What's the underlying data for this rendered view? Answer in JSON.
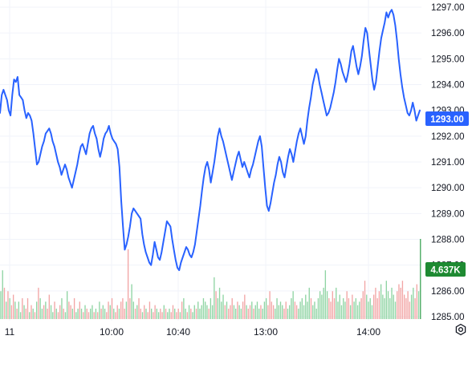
{
  "colors": {
    "price_line": "#2962ff",
    "volume_up": "#8fd4a3",
    "volume_down": "#f2a5a5",
    "volume_last": "#43a85c",
    "grid": "#f0f3fa",
    "price_tag_bg": "#2962ff",
    "volume_tag_bg": "#1e8a32"
  },
  "icons": {
    "settings": "settings-icon"
  },
  "chart_data": {
    "type": "line",
    "title": "",
    "xlabel": "",
    "ylabel": "",
    "grid": true,
    "ylim": [
      1285,
      1297.2
    ],
    "y_ticks": [
      "1297.00",
      "1296.00",
      "1295.00",
      "1294.00",
      "1293.00",
      "1292.00",
      "1291.00",
      "1290.00",
      "1289.00",
      "1288.00",
      "1287.00",
      "1286.00",
      "1285.00"
    ],
    "x_ticks": [
      "11",
      "10:00",
      "10:40",
      "13:00",
      "14:00"
    ],
    "last_price_label": "1293.00",
    "volume_label": "4.637K",
    "series": [
      {
        "kind": "price",
        "values": [
          1292.9,
          1293.6,
          1293.8,
          1293.6,
          1293.4,
          1293.0,
          1292.8,
          1293.6,
          1294.2,
          1294.1,
          1294.3,
          1293.6,
          1293.5,
          1293.4,
          1293.0,
          1292.7,
          1292.9,
          1292.8,
          1292.6,
          1292.1,
          1291.5,
          1290.9,
          1291.0,
          1291.3,
          1291.6,
          1291.8,
          1292.1,
          1292.2,
          1292.3,
          1292.1,
          1291.8,
          1291.6,
          1291.3,
          1291.0,
          1290.8,
          1290.5,
          1290.7,
          1290.9,
          1290.7,
          1290.4,
          1290.2,
          1290.0,
          1290.3,
          1290.6,
          1290.9,
          1291.3,
          1291.6,
          1291.7,
          1291.5,
          1291.3,
          1291.7,
          1292.1,
          1292.3,
          1292.4,
          1292.1,
          1291.9,
          1291.5,
          1291.2,
          1291.5,
          1291.9,
          1292.1,
          1292.2,
          1292.4,
          1292.1,
          1291.9,
          1291.8,
          1291.7,
          1291.5,
          1290.8,
          1289.5,
          1288.5,
          1287.6,
          1287.8,
          1288.1,
          1288.5,
          1289.0,
          1289.2,
          1289.1,
          1289.0,
          1288.9,
          1288.8,
          1288.2,
          1287.8,
          1287.5,
          1287.3,
          1287.1,
          1287.0,
          1287.4,
          1287.9,
          1287.6,
          1287.3,
          1287.2,
          1287.5,
          1287.9,
          1288.3,
          1288.7,
          1288.6,
          1288.5,
          1288.0,
          1287.6,
          1287.2,
          1286.9,
          1286.8,
          1287.1,
          1287.3,
          1287.5,
          1287.7,
          1287.6,
          1287.4,
          1287.3,
          1287.5,
          1287.8,
          1288.3,
          1288.8,
          1289.3,
          1289.9,
          1290.4,
          1290.8,
          1291.0,
          1290.7,
          1290.2,
          1290.6,
          1291.0,
          1291.5,
          1292.0,
          1292.3,
          1292.0,
          1291.8,
          1291.5,
          1291.2,
          1290.9,
          1290.6,
          1290.3,
          1290.6,
          1290.9,
          1291.2,
          1291.4,
          1291.1,
          1290.8,
          1291.0,
          1290.8,
          1290.6,
          1290.4,
          1290.7,
          1290.9,
          1291.2,
          1291.5,
          1291.8,
          1292.0,
          1291.6,
          1290.8,
          1290.0,
          1289.3,
          1289.1,
          1289.4,
          1289.8,
          1290.2,
          1290.5,
          1290.9,
          1291.2,
          1291.0,
          1290.6,
          1290.4,
          1290.8,
          1291.2,
          1291.5,
          1291.3,
          1291.0,
          1291.4,
          1291.8,
          1292.1,
          1292.3,
          1292.0,
          1291.7,
          1292.0,
          1292.6,
          1293.1,
          1293.5,
          1294.0,
          1294.3,
          1294.6,
          1294.4,
          1294.0,
          1293.7,
          1293.4,
          1293.1,
          1292.8,
          1292.9,
          1293.1,
          1293.4,
          1293.7,
          1294.1,
          1294.6,
          1295.0,
          1294.8,
          1294.5,
          1294.3,
          1294.1,
          1294.4,
          1294.8,
          1295.3,
          1295.5,
          1295.1,
          1294.7,
          1294.4,
          1294.7,
          1295.1,
          1295.7,
          1296.2,
          1296.0,
          1295.4,
          1294.8,
          1294.2,
          1293.8,
          1294.1,
          1294.7,
          1295.3,
          1295.8,
          1296.1,
          1296.4,
          1296.8,
          1296.6,
          1296.8,
          1296.9,
          1296.7,
          1296.3,
          1295.7,
          1295.0,
          1294.4,
          1293.9,
          1293.5,
          1293.2,
          1292.9,
          1292.8,
          1293.0,
          1293.3,
          1293.0,
          1292.6,
          1292.8,
          1293.0
        ]
      },
      {
        "kind": "volume",
        "values": [
          0.8,
          1.4,
          0.9,
          0.5,
          0.8,
          0.6,
          0.4,
          0.7,
          0.5,
          0.3,
          0.5,
          0.2,
          0.6,
          0.4,
          0.3,
          0.6,
          0.2,
          0.4,
          0.3,
          0.2,
          0.5,
          0.9,
          0.6,
          0.3,
          0.4,
          0.5,
          0.3,
          0.7,
          0.4,
          0.2,
          0.5,
          0.3,
          0.2,
          0.4,
          0.6,
          0.3,
          0.2,
          0.8,
          0.5,
          0.4,
          0.3,
          0.6,
          0.2,
          0.3,
          0.5,
          0.3,
          0.2,
          0.4,
          0.3,
          0.2,
          0.3,
          0.4,
          0.2,
          0.3,
          0.2,
          0.5,
          0.3,
          0.4,
          0.3,
          0.2,
          0.5,
          0.4,
          0.6,
          0.3,
          0.2,
          0.4,
          0.3,
          0.5,
          0.6,
          0.3,
          0.5,
          2.0,
          0.6,
          1.0,
          0.5,
          0.3,
          0.4,
          0.6,
          0.3,
          0.2,
          0.4,
          0.3,
          0.2,
          0.5,
          0.3,
          0.2,
          0.4,
          0.3,
          0.2,
          0.3,
          0.2,
          0.4,
          0.3,
          0.2,
          0.3,
          0.2,
          0.4,
          0.3,
          0.2,
          0.3,
          0.2,
          0.5,
          0.6,
          0.3,
          0.2,
          0.4,
          0.3,
          0.2,
          0.4,
          0.3,
          0.5,
          0.3,
          0.4,
          0.6,
          0.5,
          0.4,
          0.3,
          0.6,
          0.4,
          1.2,
          0.8,
          0.6,
          0.9,
          0.5,
          0.7,
          0.4,
          0.5,
          0.3,
          0.4,
          0.6,
          0.4,
          0.3,
          0.5,
          0.4,
          0.3,
          0.5,
          0.7,
          0.4,
          0.3,
          0.4,
          0.5,
          0.3,
          0.4,
          0.5,
          0.3,
          0.4,
          0.3,
          0.5,
          0.6,
          0.4,
          0.8,
          0.5,
          0.4,
          0.3,
          0.6,
          0.4,
          0.5,
          0.4,
          0.3,
          0.5,
          0.3,
          0.4,
          0.6,
          0.8,
          0.5,
          0.4,
          0.3,
          0.5,
          0.6,
          0.4,
          0.7,
          0.5,
          0.9,
          0.6,
          0.4,
          0.5,
          0.3,
          0.6,
          0.8,
          0.7,
          0.9,
          1.4,
          0.8,
          0.6,
          0.5,
          0.8,
          0.6,
          0.9,
          0.5,
          0.7,
          0.4,
          0.6,
          0.5,
          0.8,
          0.6,
          0.4,
          0.7,
          0.5,
          0.6,
          0.4,
          0.5,
          0.6,
          0.8,
          1.1,
          0.7,
          0.5,
          0.6,
          0.4,
          0.7,
          0.9,
          0.6,
          0.8,
          1.0,
          0.7,
          0.6,
          1.1,
          0.8,
          0.6,
          0.9,
          0.7,
          0.5,
          0.8,
          1.0,
          0.9,
          1.1,
          0.7,
          0.6,
          0.8,
          0.5,
          0.7,
          0.9,
          0.6,
          1.0,
          0.8,
          2.3
        ],
        "direction": [
          1,
          1,
          0,
          1,
          0,
          1,
          0,
          0,
          1,
          0,
          1,
          1,
          0,
          1,
          0,
          0,
          1,
          0,
          1,
          0,
          1,
          0,
          1,
          1,
          0,
          1,
          0,
          0,
          1,
          1,
          0,
          1,
          0,
          0,
          1,
          0,
          1,
          1,
          0,
          0,
          1,
          0,
          1,
          1,
          0,
          1,
          0,
          1,
          0,
          0,
          1,
          1,
          0,
          1,
          0,
          1,
          0,
          1,
          1,
          0,
          0,
          1,
          0,
          1,
          0,
          0,
          1,
          0,
          0,
          0,
          1,
          0,
          0,
          1,
          1,
          0,
          1,
          0,
          0,
          1,
          0,
          1,
          0,
          0,
          1,
          0,
          0,
          1,
          1,
          0,
          0,
          1,
          0,
          1,
          1,
          0,
          0,
          1,
          0,
          0,
          1,
          0,
          1,
          1,
          0,
          1,
          0,
          1,
          1,
          0,
          1,
          1,
          1,
          1,
          1,
          1,
          0,
          1,
          1,
          1,
          0,
          1,
          1,
          1,
          1,
          0,
          1,
          0,
          0,
          0,
          1,
          1,
          0,
          1,
          1,
          0,
          0,
          1,
          0,
          0,
          1,
          0,
          1,
          1,
          1,
          0,
          1,
          1,
          1,
          0,
          0,
          0,
          0,
          1,
          1,
          1,
          1,
          1,
          0,
          0,
          1,
          1,
          1,
          1,
          0,
          0,
          1,
          1,
          1,
          1,
          1,
          1,
          1,
          0,
          1,
          1,
          1,
          1,
          1,
          1,
          1,
          1,
          1,
          0,
          0,
          0,
          0,
          1,
          1,
          1,
          1,
          1,
          1,
          0,
          0,
          1,
          0,
          1,
          1,
          1,
          1,
          0,
          0,
          0,
          1,
          1,
          1,
          1,
          0,
          0,
          0,
          0,
          1,
          1,
          1,
          1,
          1,
          1,
          1,
          1,
          1,
          0,
          0,
          0,
          0,
          0,
          0,
          0,
          0,
          1,
          1,
          0,
          0,
          1,
          0,
          1,
          1
        ]
      }
    ]
  }
}
